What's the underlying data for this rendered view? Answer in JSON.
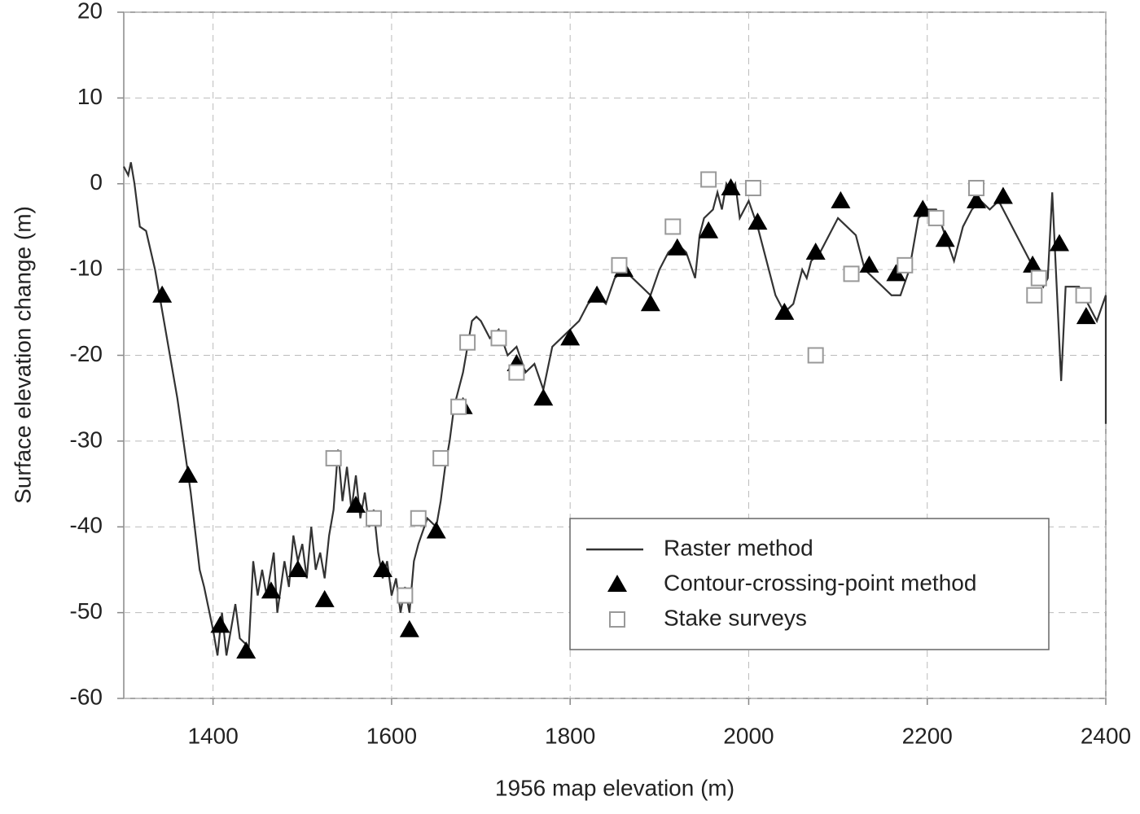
{
  "chart_data": {
    "type": "line",
    "xlabel": "1956 map elevation (m)",
    "ylabel": "Surface elevation change (m)",
    "xlim": [
      1300,
      2400
    ],
    "xticks": [
      1400,
      1600,
      1800,
      2000,
      2200,
      2400
    ],
    "ylim": [
      -60,
      20
    ],
    "yticks": [
      -60,
      -50,
      -40,
      -30,
      -20,
      -10,
      0,
      10,
      20
    ],
    "grid": true,
    "legend": "lower right",
    "series": [
      {
        "name": "Raster method",
        "color": "#333333",
        "mode": "line",
        "x": [
          1300,
          1305,
          1308,
          1312,
          1318,
          1325,
          1335,
          1345,
          1360,
          1375,
          1385,
          1390,
          1400,
          1405,
          1410,
          1415,
          1425,
          1430,
          1440,
          1445,
          1450,
          1455,
          1460,
          1468,
          1472,
          1480,
          1485,
          1490,
          1495,
          1500,
          1505,
          1510,
          1515,
          1520,
          1525,
          1530,
          1535,
          1540,
          1545,
          1550,
          1555,
          1560,
          1565,
          1570,
          1575,
          1580,
          1585,
          1590,
          1595,
          1600,
          1605,
          1610,
          1615,
          1620,
          1625,
          1630,
          1640,
          1650,
          1655,
          1660,
          1665,
          1670,
          1680,
          1685,
          1690,
          1695,
          1700,
          1710,
          1720,
          1730,
          1740,
          1750,
          1760,
          1770,
          1780,
          1790,
          1800,
          1810,
          1820,
          1830,
          1840,
          1850,
          1860,
          1870,
          1880,
          1890,
          1900,
          1910,
          1920,
          1930,
          1940,
          1945,
          1950,
          1960,
          1965,
          1970,
          1975,
          1980,
          1985,
          1990,
          2000,
          2010,
          2020,
          2030,
          2040,
          2050,
          2060,
          2065,
          2070,
          2080,
          2090,
          2100,
          2110,
          2120,
          2130,
          2140,
          2150,
          2160,
          2170,
          2180,
          2190,
          2200,
          2210,
          2220,
          2230,
          2240,
          2250,
          2260,
          2270,
          2280,
          2290,
          2300,
          2310,
          2320,
          2330,
          2335,
          2340,
          2345,
          2350,
          2355,
          2370,
          2380,
          2390,
          2400,
          2400
        ],
        "values": [
          2,
          1,
          2.5,
          0,
          -5,
          -5.5,
          -10,
          -16,
          -25,
          -36,
          -45,
          -47,
          -52,
          -55,
          -50,
          -55,
          -49,
          -53,
          -54,
          -44,
          -48,
          -45,
          -48,
          -43,
          -50,
          -44,
          -47,
          -41,
          -44,
          -42,
          -46,
          -40,
          -45,
          -43,
          -46,
          -41,
          -38,
          -31,
          -37,
          -33,
          -38,
          -34,
          -39,
          -36,
          -40,
          -38,
          -43,
          -46,
          -44,
          -48,
          -46,
          -50,
          -47,
          -50,
          -44,
          -42,
          -39,
          -40,
          -37,
          -33,
          -30,
          -26,
          -22,
          -19,
          -16,
          -15.5,
          -16,
          -18,
          -17,
          -20,
          -19,
          -22,
          -21,
          -24,
          -19,
          -18,
          -17,
          -16,
          -14,
          -13,
          -14,
          -11,
          -10,
          -11,
          -12,
          -13,
          -10,
          -8,
          -7,
          -8,
          -11,
          -6,
          -4,
          -3,
          -1,
          -3,
          0,
          -1,
          0,
          -4,
          -2,
          -5,
          -9,
          -13,
          -15,
          -14,
          -10,
          -11,
          -9,
          -8,
          -6,
          -4,
          -5,
          -6,
          -10,
          -11,
          -12,
          -13,
          -13,
          -10,
          -4,
          -3,
          -3,
          -6,
          -9,
          -5,
          -3,
          -2,
          -3,
          -2,
          -4,
          -6,
          -8,
          -10,
          -12,
          -11,
          -1,
          -12,
          -23,
          -12,
          -12,
          -14,
          -16,
          -13,
          -28
        ]
      },
      {
        "name": "Contour-crossing-point method",
        "color": "#000000",
        "mode": "triangle",
        "x": [
          1343,
          1372,
          1408,
          1437,
          1465,
          1495,
          1525,
          1560,
          1590,
          1620,
          1650,
          1680,
          1740,
          1770,
          1800,
          1830,
          1860,
          1890,
          1920,
          1955,
          1980,
          2010,
          2040,
          2075,
          2103,
          2135,
          2165,
          2195,
          2220,
          2255,
          2285,
          2318,
          2348,
          2378
        ],
        "values": [
          -13,
          -34,
          -51.5,
          -54.5,
          -47.5,
          -45,
          -48.5,
          -37.5,
          -45,
          -52,
          -40.5,
          -26,
          -21,
          -25,
          -18,
          -13,
          -10,
          -14,
          -7.5,
          -5.5,
          -0.5,
          -4.5,
          -15,
          -8,
          -2,
          -9.5,
          -10.5,
          -3,
          -6.5,
          -2,
          -1.5,
          -9.5,
          -7,
          -15.5
        ]
      },
      {
        "name": "Stake surveys",
        "color": "#999999",
        "mode": "square",
        "x": [
          1535,
          1580,
          1615,
          1630,
          1655,
          1675,
          1685,
          1720,
          1740,
          1855,
          1915,
          1955,
          2005,
          2075,
          2115,
          2175,
          2210,
          2255,
          2320,
          2325,
          2375
        ],
        "values": [
          -32,
          -39,
          -48,
          -39,
          -32,
          -26,
          -18.5,
          -18,
          -22,
          -9.5,
          -5,
          0.5,
          -0.5,
          -20,
          -10.5,
          -9.5,
          -4,
          -0.5,
          -13,
          -11,
          -13
        ]
      }
    ]
  }
}
